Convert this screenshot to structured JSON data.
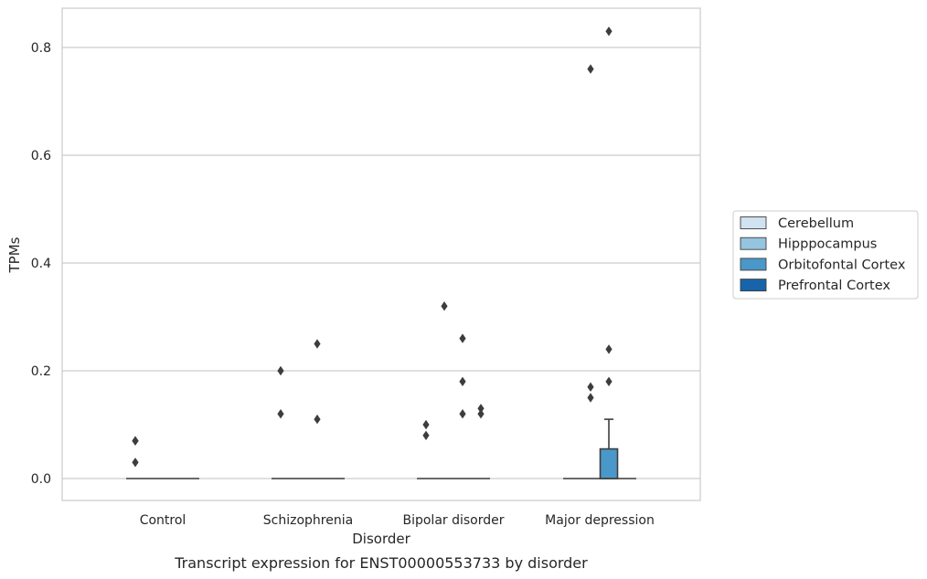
{
  "chart_data": {
    "type": "box",
    "title": "",
    "caption": "Transcript expression for ENST00000553733 by disorder",
    "xlabel": "Disorder",
    "ylabel": "TPMs",
    "categories": [
      "Control",
      "Schizophrenia",
      "Bipolar disorder",
      "Major depression"
    ],
    "ylim": [
      -0.04,
      0.875
    ],
    "yticks": [
      0.0,
      0.2,
      0.4,
      0.6,
      0.8
    ],
    "ytick_labels": [
      "0.0",
      "0.2",
      "0.4",
      "0.6",
      "0.8"
    ],
    "grid": "horizontal",
    "legend_position": "right",
    "series": [
      {
        "name": "Cerebellum",
        "color": "#d0e1f2"
      },
      {
        "name": "Hipppocampus",
        "color": "#94c4df"
      },
      {
        "name": "Orbitofontal Cortex",
        "color": "#4a98c9"
      },
      {
        "name": "Prefrontal Cortex",
        "color": "#1764ab"
      }
    ],
    "boxes": [
      {
        "category": "Control",
        "series": "Cerebellum",
        "q1": 0,
        "median": 0,
        "q3": 0,
        "whisker_low": 0,
        "whisker_high": 0,
        "outliers": [
          0.07,
          0.07,
          0.03
        ]
      },
      {
        "category": "Control",
        "series": "Hipppocampus",
        "q1": 0,
        "median": 0,
        "q3": 0,
        "whisker_low": 0,
        "whisker_high": 0,
        "outliers": []
      },
      {
        "category": "Control",
        "series": "Orbitofontal Cortex",
        "q1": 0,
        "median": 0,
        "q3": 0,
        "whisker_low": 0,
        "whisker_high": 0,
        "outliers": []
      },
      {
        "category": "Control",
        "series": "Prefrontal Cortex",
        "q1": 0,
        "median": 0,
        "q3": 0,
        "whisker_low": 0,
        "whisker_high": 0,
        "outliers": []
      },
      {
        "category": "Schizophrenia",
        "series": "Cerebellum",
        "q1": 0,
        "median": 0,
        "q3": 0,
        "whisker_low": 0,
        "whisker_high": 0,
        "outliers": [
          0.2,
          0.12
        ]
      },
      {
        "category": "Schizophrenia",
        "series": "Hipppocampus",
        "q1": 0,
        "median": 0,
        "q3": 0,
        "whisker_low": 0,
        "whisker_high": 0,
        "outliers": []
      },
      {
        "category": "Schizophrenia",
        "series": "Orbitofontal Cortex",
        "q1": 0,
        "median": 0,
        "q3": 0,
        "whisker_low": 0,
        "whisker_high": 0,
        "outliers": [
          0.25,
          0.11
        ]
      },
      {
        "category": "Schizophrenia",
        "series": "Prefrontal Cortex",
        "q1": 0,
        "median": 0,
        "q3": 0,
        "whisker_low": 0,
        "whisker_high": 0,
        "outliers": []
      },
      {
        "category": "Bipolar disorder",
        "series": "Cerebellum",
        "q1": 0,
        "median": 0,
        "q3": 0,
        "whisker_low": 0,
        "whisker_high": 0,
        "outliers": [
          0.1,
          0.08
        ]
      },
      {
        "category": "Bipolar disorder",
        "series": "Hipppocampus",
        "q1": 0,
        "median": 0,
        "q3": 0,
        "whisker_low": 0,
        "whisker_high": 0,
        "outliers": [
          0.32
        ]
      },
      {
        "category": "Bipolar disorder",
        "series": "Orbitofontal Cortex",
        "q1": 0,
        "median": 0,
        "q3": 0,
        "whisker_low": 0,
        "whisker_high": 0,
        "outliers": [
          0.26,
          0.18,
          0.12
        ]
      },
      {
        "category": "Bipolar disorder",
        "series": "Prefrontal Cortex",
        "q1": 0,
        "median": 0,
        "q3": 0,
        "whisker_low": 0,
        "whisker_high": 0,
        "outliers": [
          0.13,
          0.12
        ]
      },
      {
        "category": "Major depression",
        "series": "Cerebellum",
        "q1": 0,
        "median": 0,
        "q3": 0,
        "whisker_low": 0,
        "whisker_high": 0,
        "outliers": []
      },
      {
        "category": "Major depression",
        "series": "Hipppocampus",
        "q1": 0,
        "median": 0,
        "q3": 0,
        "whisker_low": 0,
        "whisker_high": 0,
        "outliers": [
          0.76,
          0.17,
          0.15
        ]
      },
      {
        "category": "Major depression",
        "series": "Orbitofontal Cortex",
        "q1": 0,
        "median": 0,
        "q3": 0.055,
        "whisker_low": 0,
        "whisker_high": 0.11,
        "outliers": [
          0.83,
          0.24,
          0.18
        ]
      },
      {
        "category": "Major depression",
        "series": "Prefrontal Cortex",
        "q1": 0,
        "median": 0,
        "q3": 0,
        "whisker_low": 0,
        "whisker_high": 0,
        "outliers": []
      }
    ]
  }
}
